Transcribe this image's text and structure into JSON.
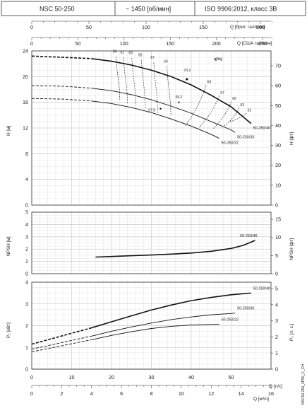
{
  "header": {
    "model": "NSC 50-250",
    "speed": "~ 1450 [об/мин]",
    "standard": "ISO 9906:2012, класс 3B"
  },
  "axes": {
    "top_q_imp_label": "Q [брит. гал/мин]",
    "top_q_us_label": "Q [США гал/мин]",
    "bottom_q_m3h_label": "Q [м³/ч]",
    "bottom_q_ls_label": "Q [л/с]",
    "h_m_label": "H [м]",
    "h_ft_label": "H [фт]",
    "npsh_m_label": "NPSH [м]",
    "npsh_ft_label": "NPSH [фт]",
    "p_kw_label": "P₂ [кВт]",
    "p_hp_label": "P₂ [л. с.]",
    "eff_label": "η[%]",
    "side_code": "NSC50-250_4P50_C_CH"
  },
  "chart_data": {
    "type": "line",
    "x_unit": "Q [м³/ч]",
    "x_range": [
      0,
      60
    ],
    "secondary_x": [
      {
        "label": "Q [брит. гал/мин]",
        "range": [
          0,
          200
        ],
        "ticks": [
          0,
          50,
          100,
          150,
          200
        ]
      },
      {
        "label": "Q [США гал/мин]",
        "range": [
          0,
          250
        ],
        "ticks": [
          0,
          50,
          100,
          150,
          200,
          250
        ]
      },
      {
        "label": "Q [л/с]",
        "range": [
          0,
          16
        ],
        "ticks": [
          0,
          2,
          4,
          6,
          8,
          10,
          12,
          14,
          16
        ]
      }
    ],
    "x_ticks": [
      0,
      10,
      20,
      30,
      40,
      50
    ],
    "panels": [
      {
        "name": "head",
        "ylabel": "H [м]",
        "ylim": [
          0,
          24
        ],
        "y_ticks": [
          0,
          4,
          8,
          12,
          16,
          20,
          24
        ],
        "secondary_y": {
          "label": "H [фт]",
          "ticks": [
            0,
            10,
            20,
            30,
            40,
            50,
            60,
            70
          ]
        },
        "series": [
          {
            "name": "50-250/40",
            "dashed_until": 15,
            "x": [
              0,
              8,
              15,
              20,
              25,
              30,
              35,
              40,
              45,
              50,
              55
            ],
            "y": [
              23.2,
              23.0,
              22.8,
              22.4,
              21.8,
              21.0,
              20.0,
              18.7,
              17.1,
              15.3,
              12.7
            ]
          },
          {
            "name": "50-250/30",
            "dashed_until": 15,
            "x": [
              0,
              8,
              15,
              20,
              25,
              30,
              35,
              40,
              45,
              50,
              51
            ],
            "y": [
              18.6,
              18.5,
              18.2,
              17.8,
              17.2,
              16.4,
              15.4,
              14.3,
              13.0,
              11.7,
              11.3
            ]
          },
          {
            "name": "50-250/22",
            "dashed_until": 15,
            "x": [
              0,
              8,
              15,
              20,
              25,
              30,
              35,
              40,
              45,
              47
            ],
            "y": [
              16.6,
              16.5,
              16.2,
              15.8,
              15.2,
              14.4,
              13.4,
              12.3,
              11.0,
              10.4
            ]
          }
        ],
        "efficiency_labels": [
          {
            "value": "59",
            "x": 20.8,
            "y": 23.7
          },
          {
            "value": "61",
            "x": 22.7,
            "y": 23.6
          },
          {
            "value": "63",
            "x": 24.8,
            "y": 23.5
          },
          {
            "value": "65",
            "x": 27.2,
            "y": 23.2
          },
          {
            "value": "67",
            "x": 30.3,
            "y": 22.8
          },
          {
            "value": "69",
            "x": 33.6,
            "y": 22.2
          },
          {
            "value": "70.2",
            "x": 39.0,
            "y": 20.8
          },
          {
            "value": "69",
            "x": 44.5,
            "y": 19.0
          },
          {
            "value": "67",
            "x": 47.8,
            "y": 17.3
          },
          {
            "value": "65",
            "x": 50.8,
            "y": 16.4
          },
          {
            "value": "63",
            "x": 52.8,
            "y": 15.4
          },
          {
            "value": "61",
            "x": 54.6,
            "y": 14.6
          },
          {
            "value": "69.2",
            "x": 36.9,
            "y": 16.6
          },
          {
            "value": "67.9",
            "x": 30.1,
            "y": 14.6
          }
        ]
      },
      {
        "name": "npsh",
        "ylabel": "NPSH [м]",
        "ylim": [
          0,
          5
        ],
        "y_ticks": [
          0,
          1,
          2,
          3,
          4,
          5
        ],
        "secondary_y": {
          "label": "NPSH [фт]",
          "ticks": [
            0,
            5,
            10,
            15
          ]
        },
        "series": [
          {
            "name": "50-250/40",
            "x": [
              16,
              20,
              25,
              30,
              35,
              40,
              45,
              50,
              53,
              56
            ],
            "y": [
              1.35,
              1.4,
              1.46,
              1.52,
              1.59,
              1.68,
              1.82,
              2.05,
              2.3,
              2.7
            ]
          }
        ]
      },
      {
        "name": "power",
        "ylabel": "P₂ [кВт]",
        "ylim": [
          0,
          4
        ],
        "y_ticks": [
          0,
          1,
          2,
          3,
          4
        ],
        "secondary_y": {
          "label": "P₂ [л. с.]",
          "ticks": [
            0,
            1,
            2,
            3,
            4,
            5
          ]
        },
        "series": [
          {
            "name": "50-250/40",
            "dashed_until": 15,
            "x": [
              0,
              5,
              10,
              15,
              20,
              25,
              30,
              35,
              40,
              45,
              50,
              55
            ],
            "y": [
              1.15,
              1.4,
              1.65,
              1.9,
              2.18,
              2.45,
              2.72,
              2.95,
              3.15,
              3.3,
              3.42,
              3.5
            ]
          },
          {
            "name": "50-250/30",
            "dashed_until": 15,
            "x": [
              0,
              5,
              10,
              15,
              20,
              25,
              30,
              35,
              40,
              45,
              50,
              51
            ],
            "y": [
              0.92,
              1.12,
              1.32,
              1.52,
              1.74,
              1.94,
              2.12,
              2.28,
              2.4,
              2.5,
              2.56,
              2.58
            ]
          },
          {
            "name": "50-250/22",
            "dashed_until": 15,
            "x": [
              0,
              5,
              10,
              15,
              20,
              25,
              30,
              35,
              40,
              45,
              47
            ],
            "y": [
              0.8,
              0.98,
              1.17,
              1.35,
              1.55,
              1.72,
              1.87,
              1.97,
              2.03,
              2.06,
              2.07
            ]
          }
        ]
      }
    ]
  }
}
